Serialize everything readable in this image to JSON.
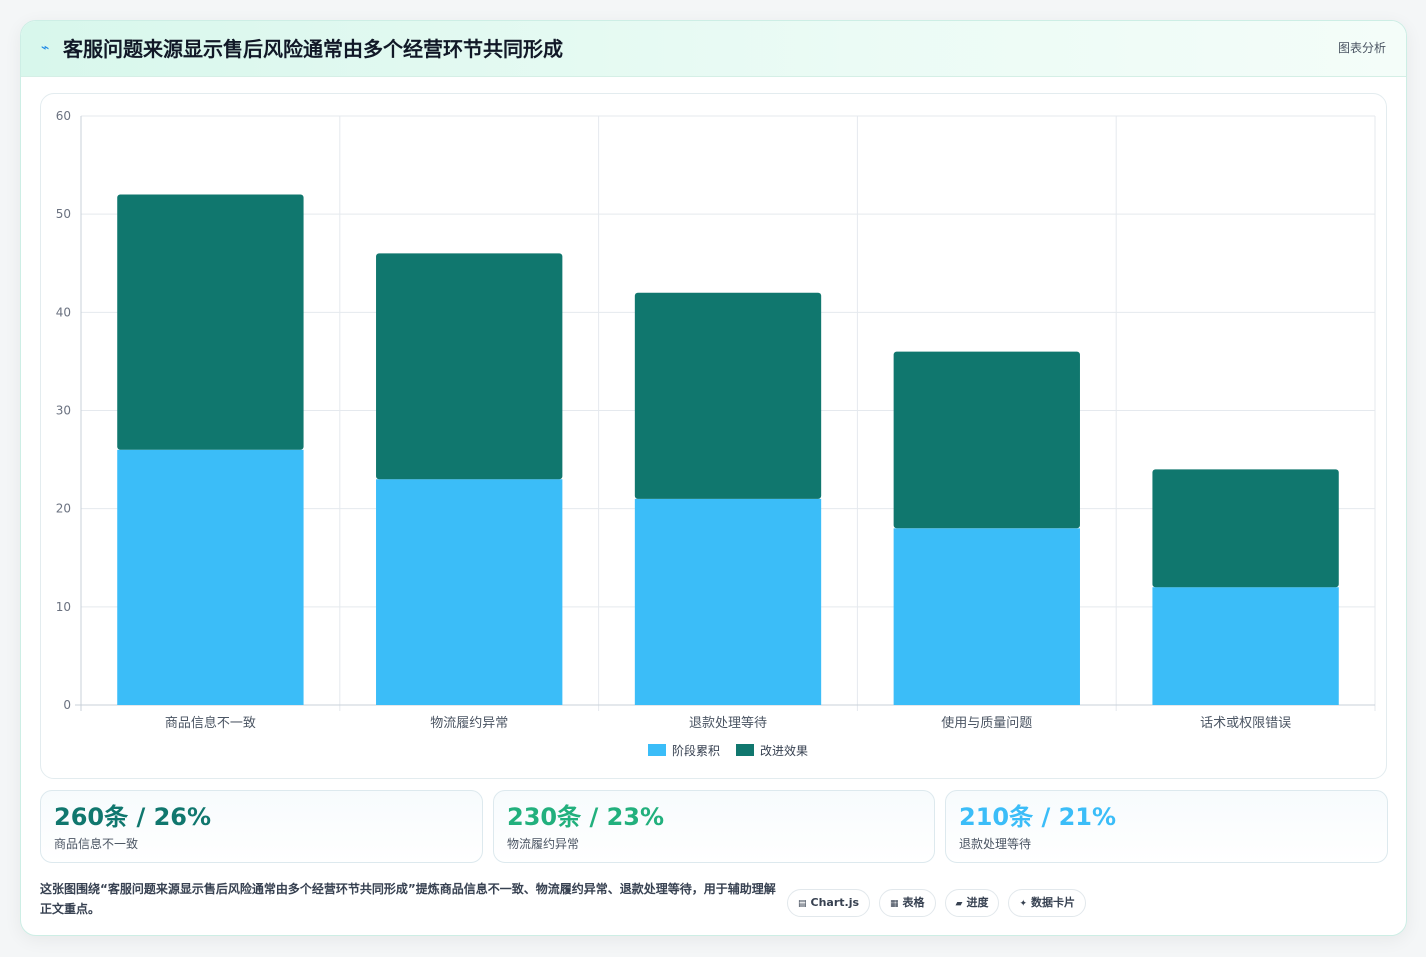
{
  "header": {
    "icon": "⌁",
    "title": "客服问题来源显示售后风险通常由多个经营环节共同形成",
    "right_label": "图表分析"
  },
  "chart_data": {
    "type": "bar",
    "stacked": true,
    "categories": [
      "商品信息不一致",
      "物流履约异常",
      "退款处理等待",
      "使用与质量问题",
      "话术或权限错误"
    ],
    "series": [
      {
        "name": "阶段累积",
        "values": [
          26,
          23,
          21,
          18,
          12
        ],
        "color": "#3bbdf8"
      },
      {
        "name": "改进效果",
        "values": [
          26,
          23,
          21,
          18,
          12
        ],
        "color": "#10776e"
      }
    ],
    "ylim": [
      0,
      60
    ],
    "yticks": [
      0,
      10,
      20,
      30,
      40,
      50,
      60
    ],
    "grid": true,
    "legend": "bottom"
  },
  "stats": [
    {
      "value": "260条 / 26%",
      "label": "商品信息不一致",
      "color": "#10776e"
    },
    {
      "value": "230条 / 23%",
      "label": "物流履约异常",
      "color": "#22b07d"
    },
    {
      "value": "210条 / 21%",
      "label": "退款处理等待",
      "color": "#3bbdf8"
    }
  ],
  "description": "这张图围绕“客服问题来源显示售后风险通常由多个经营环节共同形成”提炼商品信息不一致、物流履约异常、退款处理等待，用于辅助理解正文重点。",
  "tags": [
    {
      "icon": "▤",
      "label": "Chart.js"
    },
    {
      "icon": "▦",
      "label": "表格"
    },
    {
      "icon": "▰",
      "label": "进度"
    },
    {
      "icon": "✦",
      "label": "数据卡片"
    }
  ]
}
